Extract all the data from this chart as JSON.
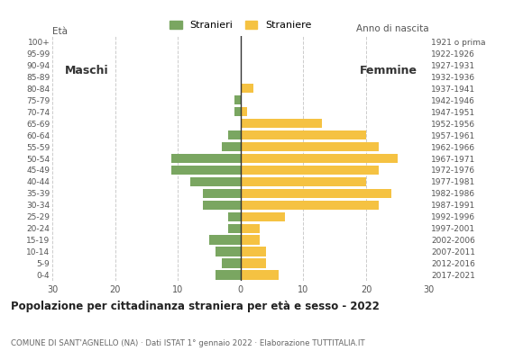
{
  "age_groups": [
    "100+",
    "95-99",
    "90-94",
    "85-89",
    "80-84",
    "75-79",
    "70-74",
    "65-69",
    "60-64",
    "55-59",
    "50-54",
    "45-49",
    "40-44",
    "35-39",
    "30-34",
    "25-29",
    "20-24",
    "15-19",
    "10-14",
    "5-9",
    "0-4"
  ],
  "birth_years": [
    "1921 o prima",
    "1922-1926",
    "1927-1931",
    "1932-1936",
    "1937-1941",
    "1942-1946",
    "1947-1951",
    "1952-1956",
    "1957-1961",
    "1962-1966",
    "1967-1971",
    "1972-1976",
    "1977-1981",
    "1982-1986",
    "1987-1991",
    "1992-1996",
    "1997-2001",
    "2002-2006",
    "2007-2011",
    "2012-2016",
    "2017-2021"
  ],
  "males": [
    0,
    0,
    0,
    0,
    0,
    1,
    1,
    0,
    2,
    3,
    11,
    11,
    8,
    6,
    6,
    2,
    2,
    5,
    4,
    3,
    4
  ],
  "females": [
    0,
    0,
    0,
    0,
    2,
    0,
    1,
    13,
    20,
    22,
    25,
    22,
    20,
    24,
    22,
    7,
    3,
    3,
    4,
    4,
    6
  ],
  "male_color": "#7aa661",
  "female_color": "#f5c242",
  "title": "Popolazione per cittadinanza straniera per età e sesso - 2022",
  "subtitle": "COMUNE DI SANT'AGNELLO (NA) · Dati ISTAT 1° gennaio 2022 · Elaborazione TUTTITALIA.IT",
  "eta_label": "Età",
  "anno_label": "Anno di nascita",
  "legend_male": "Stranieri",
  "legend_female": "Straniere",
  "label_maschi": "Maschi",
  "label_femmine": "Femmine",
  "xlim": 30,
  "background_color": "#ffffff",
  "grid_color": "#cccccc"
}
